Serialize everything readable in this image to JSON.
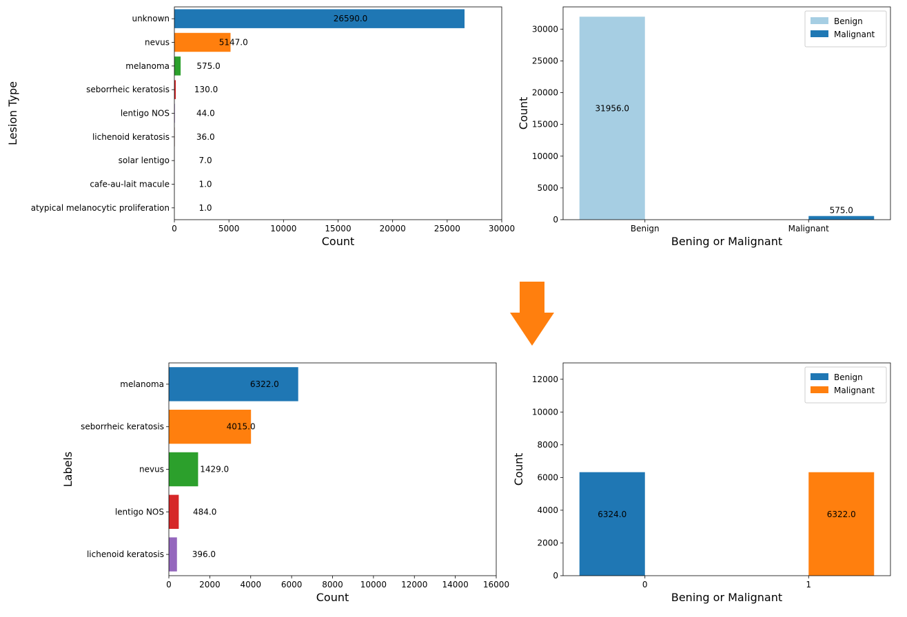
{
  "chart_data": [
    {
      "type": "bar",
      "orientation": "horizontal",
      "categories": [
        "unknown",
        "nevus",
        "melanoma",
        "seborrheic keratosis",
        "lentigo NOS",
        "lichenoid keratosis",
        "solar lentigo",
        "cafe-au-lait macule",
        "atypical melanocytic proliferation"
      ],
      "values": [
        26590,
        5147,
        575,
        130,
        44,
        36,
        7,
        1,
        1
      ],
      "data_labels": [
        "26590.0",
        "5147.0",
        "575.0",
        "130.0",
        "44.0",
        "36.0",
        "7.0",
        "1.0",
        "1.0"
      ],
      "colors": [
        "#1f77b4",
        "#ff7f0e",
        "#2ca02c",
        "#d62728",
        "#9467bd",
        "#8c564b",
        "#e377c2",
        "#7f7f7f",
        "#bcbd22"
      ],
      "xlabel": "Count",
      "ylabel": "Lesion Type",
      "xlim": [
        0,
        30000
      ],
      "xticks": [
        "0",
        "5000",
        "10000",
        "15000",
        "20000",
        "25000",
        "30000"
      ]
    },
    {
      "type": "bar",
      "categories": [
        "Benign",
        "Malignant"
      ],
      "series": [
        {
          "name": "Benign",
          "values": [
            31956,
            null
          ],
          "data_label": "31956.0",
          "color": "#a6cee3"
        },
        {
          "name": "Malignant",
          "values": [
            null,
            575
          ],
          "data_label": "575.0",
          "color": "#1f78b4"
        }
      ],
      "xlabel": "Bening or Malignant",
      "ylabel": "Count",
      "ylim": [
        0,
        33500
      ],
      "yticks": [
        "0",
        "5000",
        "10000",
        "15000",
        "20000",
        "25000",
        "30000"
      ],
      "legend": "top-right"
    },
    {
      "type": "bar",
      "orientation": "horizontal",
      "categories": [
        "melanoma",
        "seborrheic keratosis",
        "nevus",
        "lentigo NOS",
        "lichenoid keratosis"
      ],
      "values": [
        6322,
        4015,
        1429,
        484,
        396
      ],
      "data_labels": [
        "6322.0",
        "4015.0",
        "1429.0",
        "484.0",
        "396.0"
      ],
      "colors": [
        "#1f77b4",
        "#ff7f0e",
        "#2ca02c",
        "#d62728",
        "#9467bd"
      ],
      "xlabel": "Count",
      "ylabel": "Labels",
      "xlim": [
        0,
        16000
      ],
      "xticks": [
        "0",
        "2000",
        "4000",
        "6000",
        "8000",
        "10000",
        "12000",
        "14000",
        "16000"
      ]
    },
    {
      "type": "bar",
      "categories": [
        "0",
        "1"
      ],
      "series": [
        {
          "name": "Benign",
          "values": [
            6324,
            null
          ],
          "data_label": "6324.0",
          "color": "#1f77b4"
        },
        {
          "name": "Malignant",
          "values": [
            null,
            6322
          ],
          "data_label": "6322.0",
          "color": "#ff7f0e"
        }
      ],
      "xlabel": "Bening or Malignant",
      "ylabel": "Count",
      "ylim": [
        0,
        13000
      ],
      "yticks": [
        "0",
        "2000",
        "4000",
        "6000",
        "8000",
        "10000",
        "12000"
      ],
      "legend": "top-right"
    }
  ],
  "arrow": {
    "icon": "down-arrow-icon",
    "color": "#ff7f0e"
  }
}
